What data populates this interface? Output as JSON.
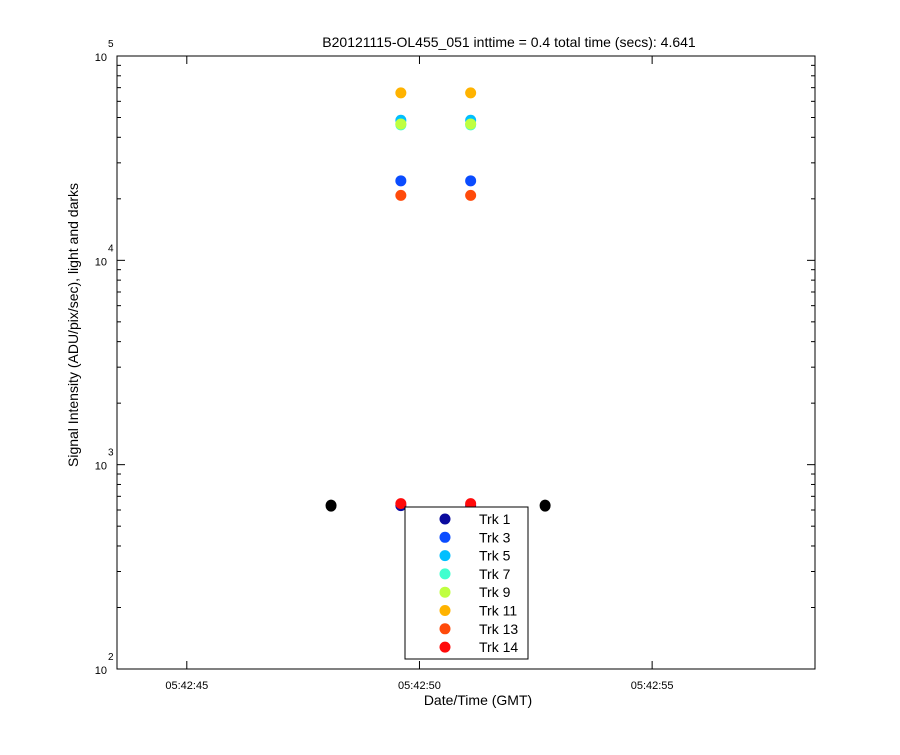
{
  "chart_data": {
    "type": "scatter",
    "title": "B20121115-OL455_051 inttime = 0.4 total time (secs): 4.641",
    "xlabel": "Date/Time (GMT)",
    "ylabel": "Signal Intensity (ADU/pix/sec), light and darks",
    "x_scale": "time",
    "y_scale": "log",
    "xlim": [
      "05:42:43.5",
      "05:42:58.5"
    ],
    "ylim": [
      100,
      100000
    ],
    "x_ticks": [
      "05:42:45",
      "05:42:50",
      "05:42:55"
    ],
    "y_ticks": [
      {
        "value": 100,
        "base": "10",
        "exp": "2"
      },
      {
        "value": 1000,
        "base": "10",
        "exp": "3"
      },
      {
        "value": 10000,
        "base": "10",
        "exp": "4"
      },
      {
        "value": 100000,
        "base": "10",
        "exp": "5"
      }
    ],
    "grid": false,
    "legend_position": "bottom-center",
    "darks": {
      "color": "#000000",
      "points": [
        {
          "x": "05:42:48.1",
          "y": 630
        },
        {
          "x": "05:42:52.7",
          "y": 630
        }
      ]
    },
    "series": [
      {
        "name": "Trk 1",
        "color": "#0a0a9e",
        "points": [
          {
            "x": "05:42:49.6",
            "y": 630
          },
          {
            "x": "05:42:51.1",
            "y": 630
          }
        ]
      },
      {
        "name": "Trk 3",
        "color": "#0a4cff",
        "points": [
          {
            "x": "05:42:49.6",
            "y": 24500
          },
          {
            "x": "05:42:51.1",
            "y": 24500
          }
        ]
      },
      {
        "name": "Trk 5",
        "color": "#00bfff",
        "points": [
          {
            "x": "05:42:49.6",
            "y": 48500
          },
          {
            "x": "05:42:51.1",
            "y": 48500
          }
        ]
      },
      {
        "name": "Trk 7",
        "color": "#40ffcf",
        "points": [
          {
            "x": "05:42:49.6",
            "y": 46000
          },
          {
            "x": "05:42:51.1",
            "y": 46000
          }
        ]
      },
      {
        "name": "Trk 9",
        "color": "#bfff40",
        "points": [
          {
            "x": "05:42:49.6",
            "y": 46500
          },
          {
            "x": "05:42:51.1",
            "y": 46500
          }
        ]
      },
      {
        "name": "Trk 11",
        "color": "#ffb300",
        "points": [
          {
            "x": "05:42:49.6",
            "y": 66000
          },
          {
            "x": "05:42:51.1",
            "y": 66000
          }
        ]
      },
      {
        "name": "Trk 13",
        "color": "#ff4a0a",
        "points": [
          {
            "x": "05:42:49.6",
            "y": 20800
          },
          {
            "x": "05:42:51.1",
            "y": 20800
          }
        ]
      },
      {
        "name": "Trk 14",
        "color": "#ff0a0a",
        "points": [
          {
            "x": "05:42:49.6",
            "y": 645
          },
          {
            "x": "05:42:51.1",
            "y": 645
          }
        ]
      }
    ]
  }
}
